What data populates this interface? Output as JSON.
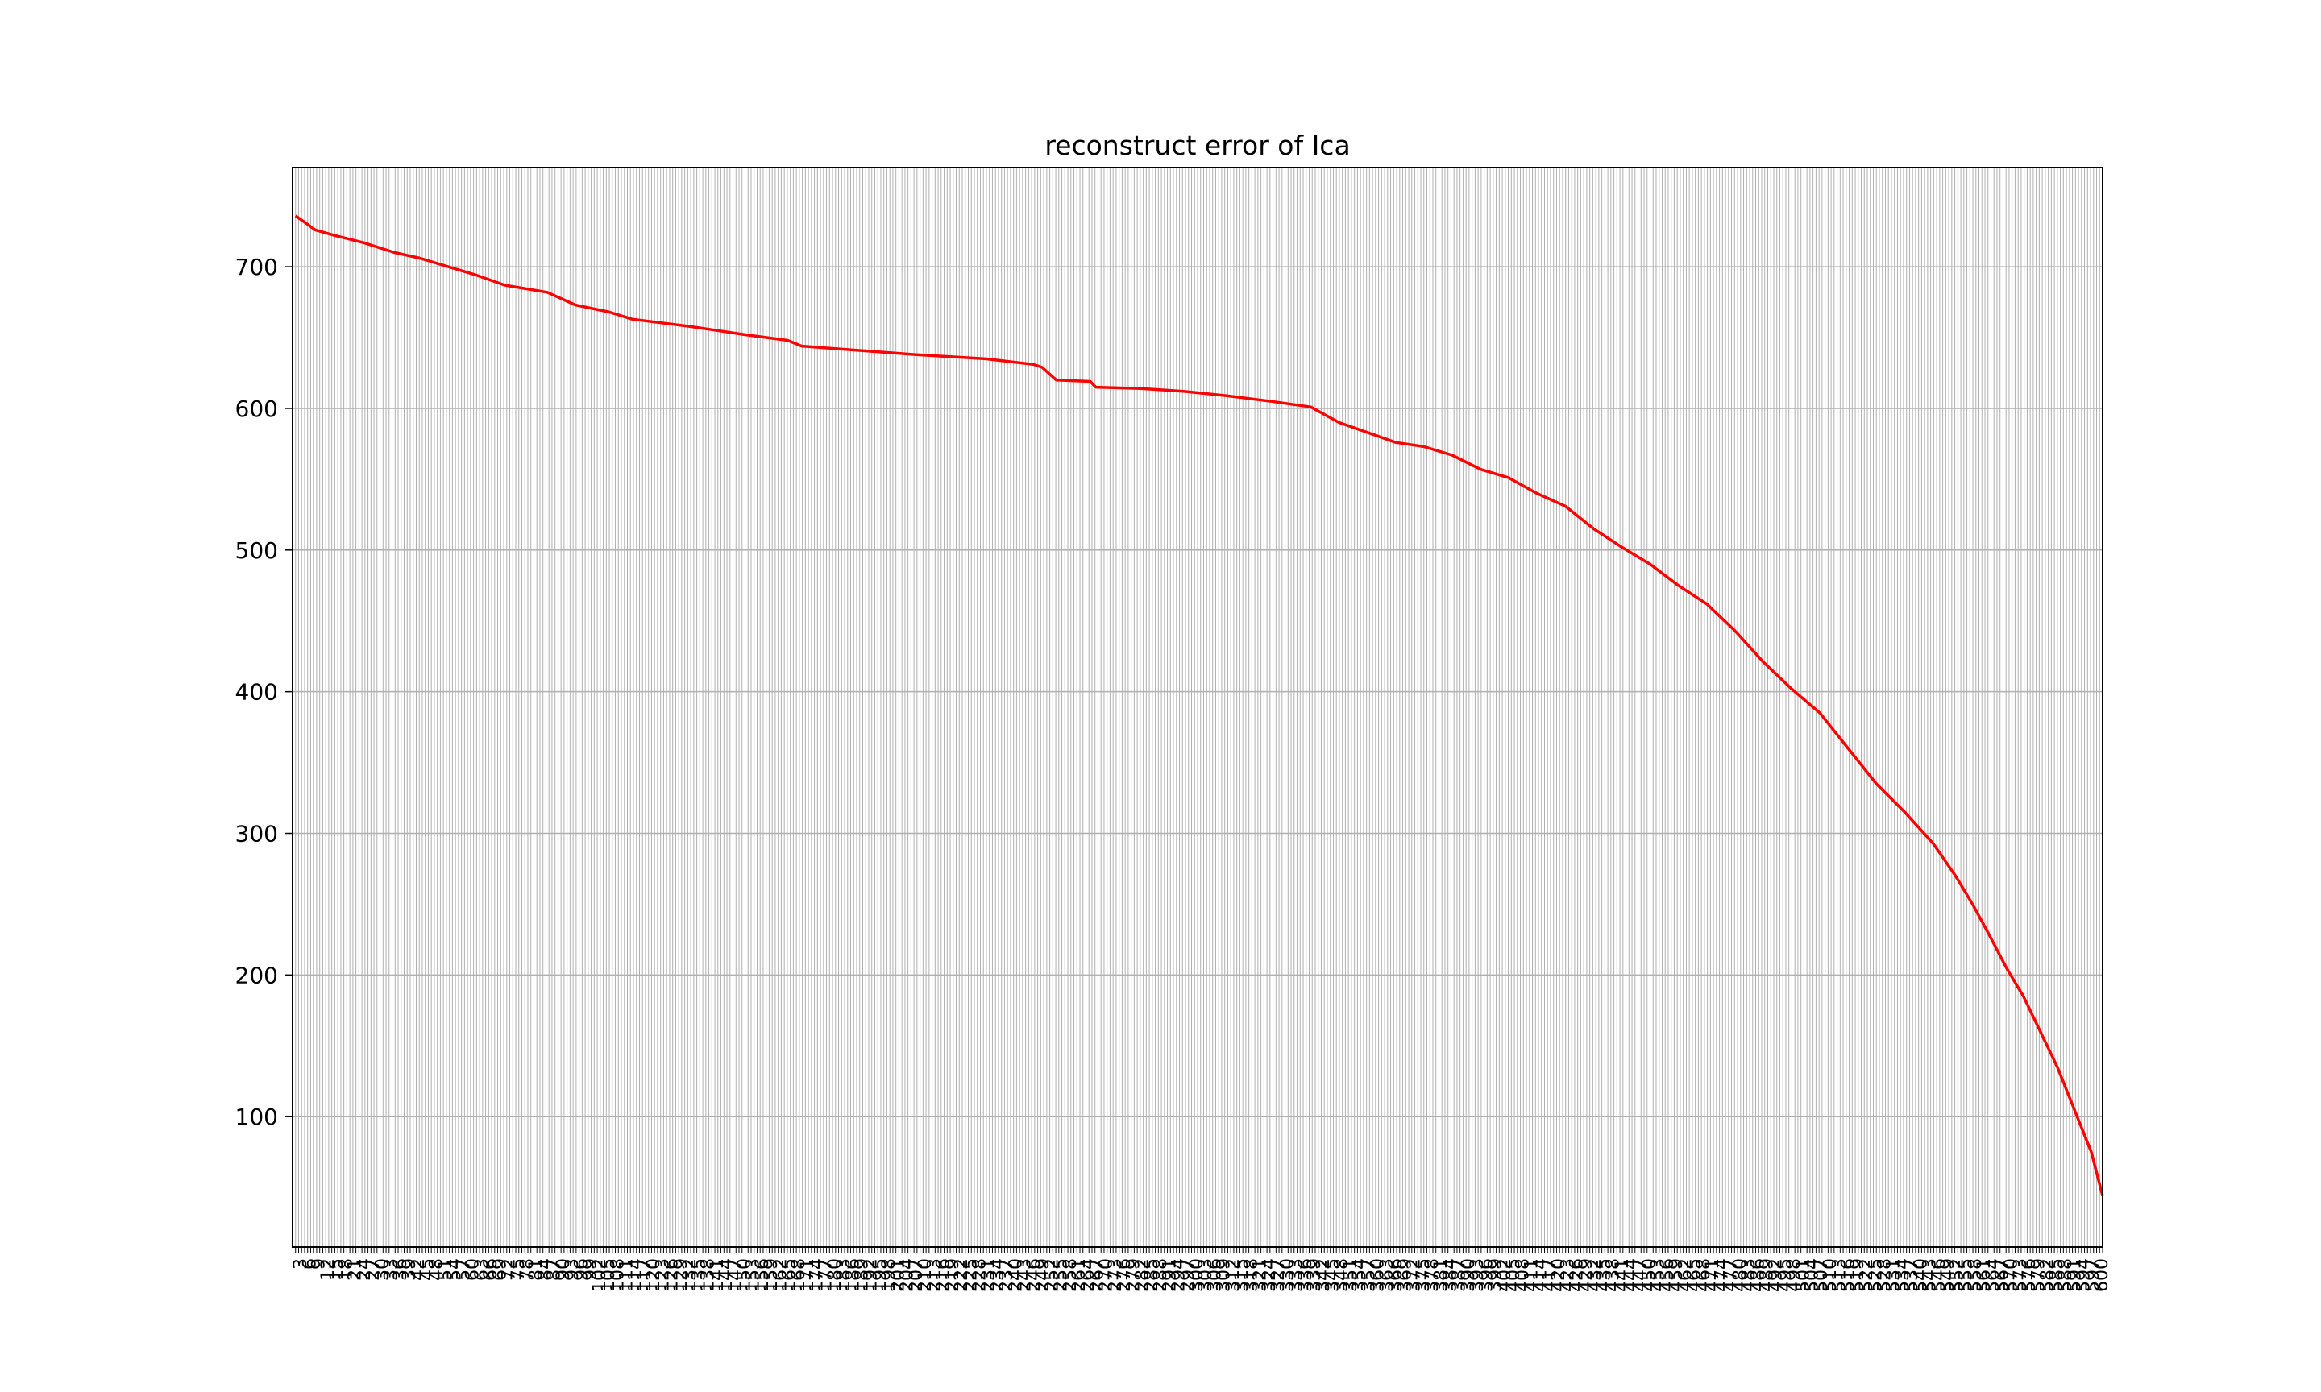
{
  "chart_data": {
    "type": "line",
    "title": "reconstruct error of Ica",
    "xlabel": "",
    "ylabel": "",
    "ylim": [
      8,
      770
    ],
    "xlim": [
      0,
      600
    ],
    "yticks": [
      100,
      200,
      300,
      400,
      500,
      600,
      700
    ],
    "grid": true,
    "xticks": {
      "start": 1,
      "end": 600,
      "step": 1
    },
    "series": [
      {
        "color": "#ff0000",
        "trend": [
          [
            1,
            736
          ],
          [
            8,
            726
          ],
          [
            15,
            722
          ],
          [
            25,
            717
          ],
          [
            36,
            710
          ],
          [
            45,
            706
          ],
          [
            55,
            700
          ],
          [
            65,
            694
          ],
          [
            75,
            687
          ],
          [
            90,
            682
          ],
          [
            100,
            673
          ],
          [
            112,
            668
          ],
          [
            120,
            663
          ],
          [
            140,
            658
          ],
          [
            150,
            655
          ],
          [
            160,
            652
          ],
          [
            175,
            648
          ],
          [
            180,
            644
          ],
          [
            200,
            641
          ],
          [
            220,
            638
          ],
          [
            245,
            635
          ],
          [
            262,
            631
          ],
          [
            265,
            629
          ],
          [
            270,
            620
          ],
          [
            282,
            619
          ],
          [
            284,
            615
          ],
          [
            300,
            614
          ],
          [
            315,
            612
          ],
          [
            330,
            609
          ],
          [
            346,
            605
          ],
          [
            360,
            601
          ],
          [
            370,
            590
          ],
          [
            380,
            583
          ],
          [
            390,
            576
          ],
          [
            400,
            573
          ],
          [
            410,
            567
          ],
          [
            420,
            557
          ],
          [
            430,
            551
          ],
          [
            440,
            540
          ],
          [
            450,
            531
          ],
          [
            460,
            515
          ],
          [
            470,
            502
          ],
          [
            480,
            490
          ],
          [
            490,
            475
          ],
          [
            500,
            462
          ],
          [
            510,
            443
          ],
          [
            520,
            421
          ],
          [
            530,
            402
          ],
          [
            540,
            385
          ],
          [
            550,
            360
          ],
          [
            560,
            335
          ],
          [
            570,
            315
          ],
          [
            580,
            293
          ],
          [
            588,
            270
          ],
          [
            594,
            250
          ],
          [
            600,
            228
          ],
          [
            606,
            205
          ],
          [
            612,
            185
          ],
          [
            618,
            160
          ],
          [
            624,
            135
          ],
          [
            630,
            105
          ],
          [
            636,
            75
          ],
          [
            640,
            44
          ]
        ],
        "trend_x_max": 640
      }
    ]
  }
}
